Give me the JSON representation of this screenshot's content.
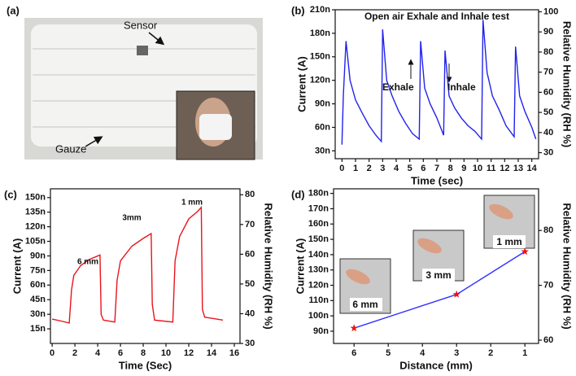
{
  "panel_a": {
    "panel_label": "(a)",
    "sensor_label": "Sensor",
    "gauze_label": "Gauze"
  },
  "chart_data": [
    {
      "type": "line",
      "panel_label": "(b)",
      "title": "Open air Exhale and Inhale test",
      "x_label": "Time (sec)",
      "y_label": "Current (A)",
      "y2_label": "Relative Humidity (RH %)",
      "annotations": [
        "Exhale",
        "Inhale"
      ],
      "color": "#2222ee",
      "x": [
        0,
        0.1,
        0.3,
        0.6,
        1,
        1.5,
        2,
        2.5,
        2.9,
        3.0,
        3.3,
        3.7,
        4.2,
        4.7,
        5.2,
        5.7,
        5.8,
        6.1,
        6.5,
        7,
        7.5,
        7.6,
        7.9,
        8.3,
        8.8,
        9.3,
        9.8,
        10.3,
        10.4,
        10.7,
        11.1,
        11.6,
        12.1,
        12.7,
        12.8,
        13.1,
        13.5,
        14,
        14.3
      ],
      "values": [
        38,
        100,
        170,
        120,
        95,
        78,
        62,
        50,
        42,
        185,
        120,
        100,
        80,
        65,
        52,
        45,
        170,
        110,
        90,
        72,
        50,
        158,
        100,
        85,
        72,
        62,
        55,
        45,
        197,
        130,
        100,
        82,
        62,
        48,
        163,
        100,
        80,
        60,
        45
      ],
      "xlim": [
        -0.5,
        14.5
      ],
      "xticks": [
        0,
        1,
        2,
        3,
        4,
        5,
        6,
        7,
        8,
        9,
        10,
        11,
        12,
        13,
        14
      ],
      "ylim": [
        20,
        210
      ],
      "yticks": [
        {
          "value": 30,
          "label": "30n"
        },
        {
          "value": 60,
          "label": "60n"
        },
        {
          "value": 90,
          "label": "90n"
        },
        {
          "value": 120,
          "label": "120n"
        },
        {
          "value": 150,
          "label": "150n"
        },
        {
          "value": 180,
          "label": "180n"
        },
        {
          "value": 210,
          "label": "210n"
        }
      ],
      "y2lim": [
        27,
        101
      ],
      "y2ticks": [
        30,
        40,
        50,
        60,
        70,
        80,
        90,
        100
      ]
    },
    {
      "type": "line",
      "panel_label": "(c)",
      "x_label": "Time (Sec)",
      "y_label": "Current (A)",
      "y2_label": "Relative Humidity (RH %)",
      "annotations": [
        "6 mm",
        "3mm",
        "1 mm"
      ],
      "color": "#e8141c",
      "x": [
        0,
        0.8,
        1.5,
        1.7,
        1.9,
        2.5,
        3.2,
        4.2,
        4.3,
        4.5,
        5.5,
        5.7,
        6,
        7,
        8,
        8.7,
        8.8,
        9,
        10.6,
        10.8,
        11.2,
        12,
        12.8,
        13.1,
        13.2,
        13.4,
        15
      ],
      "values": [
        25,
        23,
        21,
        55,
        70,
        80,
        86,
        91,
        30,
        24,
        22,
        65,
        85,
        100,
        108,
        113,
        40,
        24,
        22,
        85,
        110,
        128,
        136,
        140,
        35,
        27,
        24
      ],
      "xlim": [
        -0.15,
        16.5
      ],
      "xticks": [
        0,
        2,
        4,
        6,
        8,
        10,
        12,
        14,
        16
      ],
      "ylim": [
        0,
        159
      ],
      "yticks": [
        {
          "value": 15,
          "label": "15n"
        },
        {
          "value": 30,
          "label": "30n"
        },
        {
          "value": 45,
          "label": "45n"
        },
        {
          "value": 60,
          "label": "60n"
        },
        {
          "value": 75,
          "label": "75n"
        },
        {
          "value": 90,
          "label": "90n"
        },
        {
          "value": 105,
          "label": "105n"
        },
        {
          "value": 120,
          "label": "120n"
        },
        {
          "value": 135,
          "label": "135n"
        },
        {
          "value": 150,
          "label": "150n"
        }
      ],
      "y2lim": [
        30,
        82
      ],
      "y2ticks": [
        30,
        40,
        50,
        60,
        70,
        80
      ]
    },
    {
      "type": "line",
      "panel_label": "(d)",
      "x_label": "Distance (mm)",
      "y_label": "Current (A)",
      "y2_label": "Relative Humidity (RH %)",
      "annotations": [
        "6 mm",
        "3 mm",
        "1 mm"
      ],
      "color": "#3333ff",
      "marker_color": "#ee1111",
      "x": [
        6,
        3,
        1
      ],
      "values": [
        92,
        114,
        142
      ],
      "xlim": [
        6.6,
        0.6
      ],
      "xticks": [
        6,
        5,
        4,
        3,
        2,
        1
      ],
      "ylim": [
        82,
        183
      ],
      "yticks": [
        {
          "value": 90,
          "label": "90n"
        },
        {
          "value": 100,
          "label": "100n"
        },
        {
          "value": 110,
          "label": "110n"
        },
        {
          "value": 120,
          "label": "120n"
        },
        {
          "value": 130,
          "label": "130n"
        },
        {
          "value": 140,
          "label": "140n"
        },
        {
          "value": 150,
          "label": "150n"
        },
        {
          "value": 160,
          "label": "160n"
        },
        {
          "value": 170,
          "label": "170n"
        },
        {
          "value": 180,
          "label": "180n"
        }
      ],
      "y2lim": [
        59.4,
        87.6
      ],
      "y2ticks": [
        60,
        70,
        80
      ]
    }
  ]
}
